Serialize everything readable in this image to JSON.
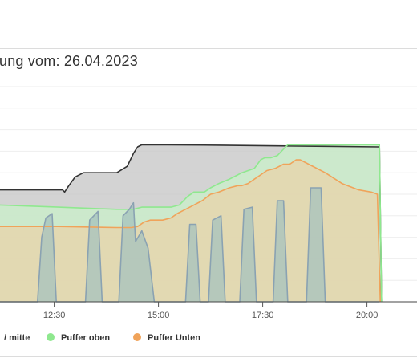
{
  "title": "ung vom: 26.04.2023",
  "chart_data": {
    "type": "area",
    "xlim": [
      11.2,
      21.2
    ],
    "ylim": [
      0,
      100
    ],
    "grid": true,
    "legend_position": "bottom",
    "x_ticks": [
      {
        "x": 12.5,
        "label": "12:30"
      },
      {
        "x": 15.0,
        "label": "15:00"
      },
      {
        "x": 17.5,
        "label": "17:30"
      },
      {
        "x": 20.0,
        "label": "20:00"
      }
    ],
    "series": [
      {
        "name": "",
        "color": "#333333",
        "fill": "#c4c4c4",
        "points": [
          [
            11.2,
            52
          ],
          [
            12.7,
            52
          ],
          [
            12.75,
            51
          ],
          [
            12.85,
            54
          ],
          [
            13.0,
            58
          ],
          [
            13.2,
            60
          ],
          [
            14.0,
            60
          ],
          [
            14.25,
            63
          ],
          [
            14.4,
            69
          ],
          [
            14.5,
            72
          ],
          [
            14.6,
            73
          ],
          [
            15.2,
            73
          ],
          [
            16.5,
            72.8
          ],
          [
            20.3,
            72
          ],
          [
            20.35,
            0
          ]
        ]
      },
      {
        "name": "Puffer oben",
        "color": "#8fe88f",
        "fill": "#c9f0c9",
        "points": [
          [
            11.2,
            45
          ],
          [
            12.6,
            44
          ],
          [
            14.0,
            43
          ],
          [
            14.4,
            43
          ],
          [
            14.6,
            44
          ],
          [
            15.3,
            44
          ],
          [
            15.5,
            45
          ],
          [
            15.7,
            49
          ],
          [
            15.85,
            51
          ],
          [
            16.1,
            51
          ],
          [
            16.25,
            53
          ],
          [
            16.45,
            55
          ],
          [
            16.7,
            57
          ],
          [
            16.9,
            59
          ],
          [
            17.0,
            60
          ],
          [
            17.3,
            62
          ],
          [
            17.45,
            66
          ],
          [
            17.55,
            67
          ],
          [
            17.7,
            67
          ],
          [
            17.85,
            68
          ],
          [
            18.0,
            71
          ],
          [
            18.1,
            73
          ],
          [
            18.4,
            73
          ],
          [
            20.3,
            73
          ],
          [
            20.35,
            0
          ]
        ]
      },
      {
        "name": "Puffer Unten",
        "color": "#f0a35a",
        "fill": "#ead3aa",
        "points": [
          [
            11.2,
            35
          ],
          [
            12.6,
            35
          ],
          [
            14.0,
            34.5
          ],
          [
            14.35,
            34.5
          ],
          [
            14.5,
            35
          ],
          [
            14.65,
            37
          ],
          [
            14.8,
            38
          ],
          [
            15.1,
            38
          ],
          [
            15.3,
            39
          ],
          [
            15.45,
            41
          ],
          [
            15.65,
            43
          ],
          [
            15.85,
            45
          ],
          [
            16.05,
            47
          ],
          [
            16.25,
            50
          ],
          [
            16.45,
            51
          ],
          [
            16.7,
            53
          ],
          [
            16.9,
            54
          ],
          [
            17.0,
            54
          ],
          [
            17.15,
            55
          ],
          [
            17.3,
            57
          ],
          [
            17.45,
            59
          ],
          [
            17.6,
            61
          ],
          [
            17.8,
            62
          ],
          [
            18.0,
            64
          ],
          [
            18.15,
            64
          ],
          [
            18.3,
            66
          ],
          [
            18.4,
            66
          ],
          [
            18.6,
            64
          ],
          [
            19.0,
            60
          ],
          [
            19.4,
            55
          ],
          [
            19.8,
            52
          ],
          [
            20.1,
            51
          ],
          [
            20.25,
            50
          ],
          [
            20.32,
            0
          ]
        ]
      },
      {
        "name": "",
        "color": "#8aa2b2",
        "fill": "#a6c2bd",
        "points": [
          [
            11.2,
            0
          ],
          [
            12.1,
            0
          ],
          [
            12.2,
            30
          ],
          [
            12.3,
            39
          ],
          [
            12.45,
            41
          ],
          [
            12.55,
            0
          ],
          [
            13.25,
            0
          ],
          [
            13.35,
            38
          ],
          [
            13.55,
            42
          ],
          [
            13.65,
            0
          ],
          [
            14.05,
            0
          ],
          [
            14.15,
            40
          ],
          [
            14.3,
            43
          ],
          [
            14.4,
            46
          ],
          [
            14.45,
            28
          ],
          [
            14.6,
            33
          ],
          [
            14.75,
            25
          ],
          [
            14.9,
            0
          ],
          [
            15.65,
            0
          ],
          [
            15.75,
            36
          ],
          [
            15.9,
            36
          ],
          [
            16.0,
            0
          ],
          [
            16.2,
            0
          ],
          [
            16.3,
            38
          ],
          [
            16.5,
            40
          ],
          [
            16.6,
            0
          ],
          [
            16.95,
            0
          ],
          [
            17.05,
            43
          ],
          [
            17.25,
            44
          ],
          [
            17.35,
            0
          ],
          [
            17.75,
            0
          ],
          [
            17.85,
            47
          ],
          [
            18.0,
            47
          ],
          [
            18.1,
            0
          ],
          [
            18.55,
            0
          ],
          [
            18.65,
            53
          ],
          [
            18.9,
            53
          ],
          [
            19.0,
            0
          ],
          [
            20.3,
            0
          ]
        ]
      }
    ]
  },
  "legend": [
    {
      "label": "/ mitte",
      "color": "#8aa2b2"
    },
    {
      "label": "Puffer oben",
      "color": "#8fe88f"
    },
    {
      "label": "Puffer Unten",
      "color": "#f0a35a"
    }
  ]
}
